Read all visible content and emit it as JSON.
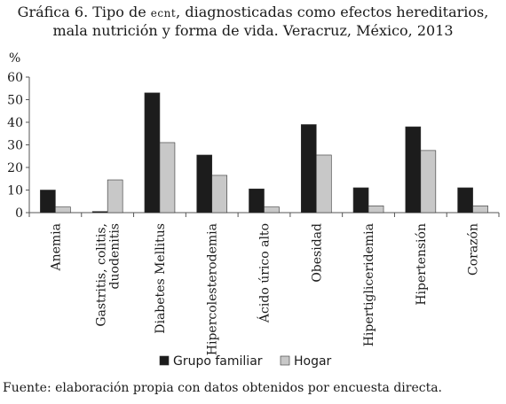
{
  "title": {
    "prefix": "Gráfica 6. Tipo de ",
    "smallcaps": "ecnt",
    "suffix": ", diagnosticadas como efectos hereditarios,",
    "line2": "mala nutrición y forma de vida. Veracruz, México, 2013"
  },
  "footer": "Fuente: elaboración propia con datos obtenidos por encuesta directa.",
  "colors": {
    "series1": "#1c1c1c",
    "series2": "#c8c8c8",
    "axis": "#555555"
  },
  "chart_data": {
    "type": "bar",
    "ylabel": "%",
    "ylim": [
      0,
      60
    ],
    "yticks": [
      0,
      10,
      20,
      30,
      40,
      50,
      60
    ],
    "grid": false,
    "legend_position": "bottom",
    "categories": [
      [
        "Anemia"
      ],
      [
        "Gastritis, colitis,",
        "duodenitis"
      ],
      [
        "Diabetes Mellitus"
      ],
      [
        "Hipercolesterodemia"
      ],
      [
        "Ácido úrico alto"
      ],
      [
        "Obesidad"
      ],
      [
        "Hipertigliceridemia"
      ],
      [
        "Hipertensión"
      ],
      [
        "Corazón"
      ]
    ],
    "series": [
      {
        "name": "Grupo familiar",
        "values": [
          10,
          0.5,
          53,
          25.5,
          10.5,
          39,
          11,
          38,
          11
        ]
      },
      {
        "name": "Hogar",
        "values": [
          2.5,
          14.5,
          31,
          16.5,
          2.5,
          25.5,
          3,
          27.5,
          3
        ]
      }
    ]
  }
}
